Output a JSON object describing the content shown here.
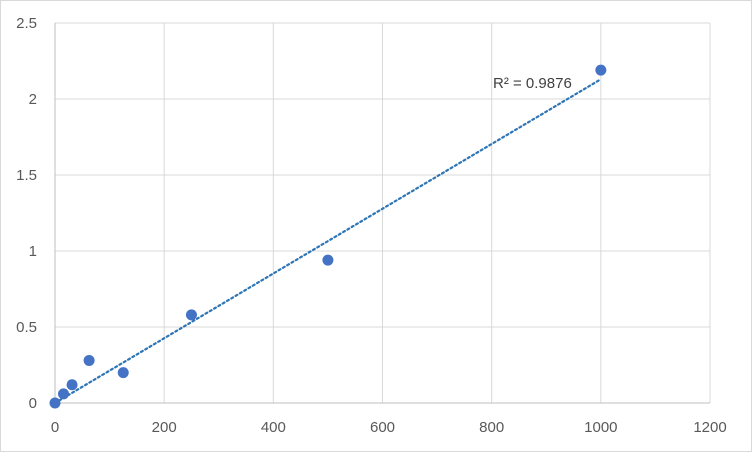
{
  "chart_data": {
    "type": "scatter",
    "title": "",
    "xlabel": "",
    "ylabel": "",
    "xlim": [
      0,
      1200
    ],
    "ylim": [
      0,
      2.5
    ],
    "x_ticks": [
      "0",
      "200",
      "400",
      "600",
      "800",
      "1000",
      "1200"
    ],
    "y_ticks": [
      "0",
      "0.5",
      "1",
      "1.5",
      "2",
      "2.5"
    ],
    "grid": true,
    "legend": "none",
    "series": [
      {
        "x": [
          0,
          15.6,
          31.25,
          62.5,
          125,
          250,
          500,
          1000
        ],
        "y": [
          0,
          0.06,
          0.12,
          0.28,
          0.2,
          0.58,
          0.94,
          2.19
        ],
        "color": "#4472c4"
      }
    ],
    "trendline": {
      "type": "linear",
      "style": "dotted",
      "color": "#2e75b6",
      "x_range": [
        0,
        1000
      ],
      "y_at_start": 0.0,
      "y_at_end": 2.13,
      "label": "R² = 0.9876"
    }
  }
}
